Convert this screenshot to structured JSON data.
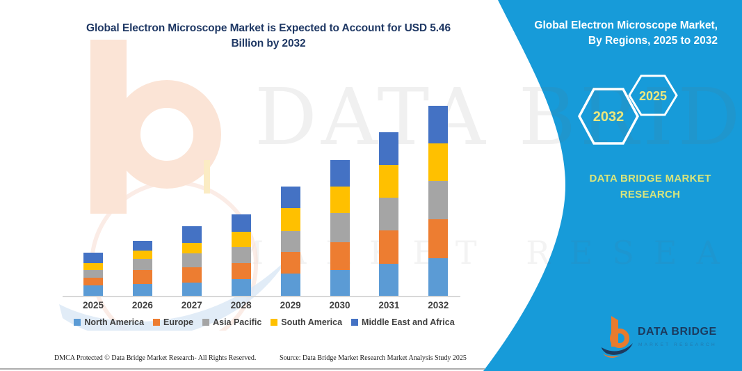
{
  "header": {
    "line1": "Global Electron Microscope Market is Expected to Account for USD 5.46",
    "line2": "Billion by 2032"
  },
  "panel": {
    "title_line1": "Global Electron Microscope Market,",
    "title_line2": "By Regions, 2025 to 2032",
    "hex_back_label": "2032",
    "hex_front_label": "2025",
    "brand_line1": "DATA BRIDGE MARKET",
    "brand_line2": "RESEARCH"
  },
  "logo": {
    "title": "DATA BRIDGE",
    "subtitle": "MARKET RESEARCH"
  },
  "watermark": {
    "row1": "DATA BRIDGE",
    "row2": "MARKET RESEARCH"
  },
  "footer": {
    "left": "DMCA Protected © Data Bridge Market Research-  All Rights Reserved.",
    "right": "Source: Data Bridge Market Research  Market Analysis Study 2025"
  },
  "colors": {
    "panel_teal": "#179BD9",
    "title_navy": "#1F3864",
    "hex_label_yellow": "#EBE77D",
    "brand_text_yellow_green": "#D9E57C",
    "logo_orange": "#E87B2E",
    "logo_navy": "#1D3A5F",
    "axis_gray": "#D8D8D8"
  },
  "chart_data": {
    "type": "bar",
    "stacked": true,
    "unit": "USD Billion",
    "title": "Global Electron Microscope Market is Expected to Account for USD 5.46 Billion by 2032",
    "categories": [
      "2025",
      "2026",
      "2027",
      "2028",
      "2029",
      "2030",
      "2031",
      "2032"
    ],
    "series": [
      {
        "name": "North America",
        "color": "#5B9BD5",
        "values": [
          0.3,
          0.35,
          0.39,
          0.49,
          0.65,
          0.75,
          0.92,
          1.09
        ]
      },
      {
        "name": "Europe",
        "color": "#ED7D31",
        "values": [
          0.22,
          0.4,
          0.43,
          0.46,
          0.62,
          0.8,
          0.96,
          1.12
        ]
      },
      {
        "name": "Asia Pacific",
        "color": "#A5A5A5",
        "values": [
          0.22,
          0.32,
          0.4,
          0.45,
          0.6,
          0.83,
          0.94,
          1.1
        ]
      },
      {
        "name": "South America",
        "color": "#FFC000",
        "values": [
          0.21,
          0.23,
          0.3,
          0.45,
          0.65,
          0.77,
          0.95,
          1.07
        ]
      },
      {
        "name": "Middle East and Africa",
        "color": "#4472C4",
        "values": [
          0.29,
          0.29,
          0.49,
          0.49,
          0.62,
          0.75,
          0.93,
          1.08
        ]
      }
    ],
    "totals": [
      1.24,
      1.59,
      2.01,
      2.34,
      3.14,
      3.9,
      4.7,
      5.46
    ],
    "ylim": [
      0,
      5.6
    ],
    "grid": false,
    "value_axis_visible": false,
    "legend_position": "bottom"
  }
}
